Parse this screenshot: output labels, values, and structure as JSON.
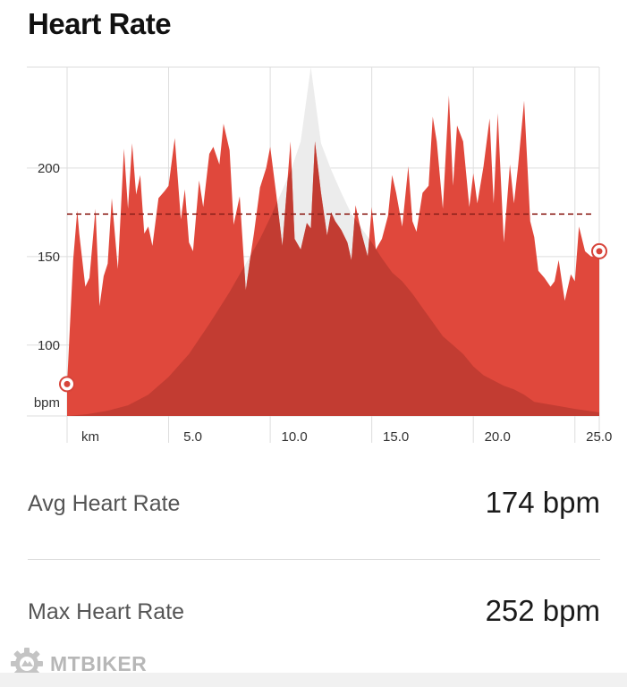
{
  "header": {
    "title": "Heart Rate"
  },
  "chart_data": {
    "type": "area",
    "y_unit": "bpm",
    "x_unit": "km",
    "xlim": [
      0,
      26.2
    ],
    "ylim": [
      60,
      257
    ],
    "y_ticks": [
      "100",
      "150",
      "200"
    ],
    "y_tick_values": [
      100,
      150,
      200
    ],
    "x_ticks": [
      "5.0",
      "10.0",
      "15.0",
      "20.0",
      "25.0"
    ],
    "x_tick_values": [
      5,
      10,
      15,
      20,
      25
    ],
    "avg_line": 174,
    "grid": true,
    "start_point": {
      "x": 0,
      "y": 78
    },
    "end_point": {
      "x": 26.2,
      "y": 153
    },
    "series": [
      {
        "x": [
          0,
          0.3,
          0.5,
          0.6,
          0.9,
          1.1,
          1.4,
          1.6,
          1.8,
          2.0,
          2.2,
          2.5,
          2.8,
          3.0,
          3.2,
          3.4,
          3.6,
          3.8,
          4.0,
          4.2,
          4.5,
          4.8,
          5.0,
          5.3,
          5.6,
          5.8,
          6.0,
          6.2,
          6.5,
          6.7,
          7.0,
          7.2,
          7.5,
          7.7,
          8.0,
          8.2,
          8.5,
          8.8,
          9.0,
          9.2,
          9.5,
          9.8,
          10.0,
          10.3,
          10.6,
          11.0,
          11.2,
          11.5,
          11.8,
          12.0,
          12.2,
          12.5,
          12.8,
          13.0,
          13.2,
          13.5,
          13.8,
          14.0,
          14.2,
          14.5,
          14.8,
          15.0,
          15.2,
          15.5,
          15.8,
          16.0,
          16.2,
          16.5,
          16.8,
          17.0,
          17.2,
          17.5,
          17.8,
          18.0,
          18.2,
          18.5,
          18.8,
          19.0,
          19.2,
          19.5,
          19.8,
          20.0,
          20.2,
          20.5,
          20.8,
          21.0,
          21.2,
          21.5,
          21.8,
          22.0,
          22.2,
          22.5,
          22.8,
          23.0,
          23.2,
          23.5,
          23.8,
          24.0,
          24.2,
          24.5,
          24.8,
          25.0,
          25.2,
          25.5,
          25.8,
          26.0,
          26.2
        ],
        "values": [
          78,
          148,
          176,
          163,
          133,
          138,
          177,
          122,
          139,
          146,
          183,
          143,
          211,
          177,
          214,
          185,
          196,
          163,
          167,
          156,
          183,
          187,
          190,
          217,
          171,
          188,
          158,
          153,
          193,
          178,
          208,
          212,
          202,
          225,
          210,
          168,
          184,
          131,
          148,
          163,
          189,
          200,
          212,
          185,
          156,
          215,
          160,
          154,
          169,
          166,
          215,
          186,
          162,
          175,
          170,
          165,
          158,
          148,
          179,
          163,
          150,
          178,
          154,
          160,
          173,
          196,
          186,
          167,
          201,
          170,
          164,
          186,
          190,
          229,
          215,
          177,
          241,
          190,
          224,
          215,
          178,
          197,
          180,
          201,
          228,
          180,
          231,
          158,
          202,
          180,
          201,
          238,
          170,
          161,
          142,
          138,
          133,
          136,
          148,
          125,
          140,
          136,
          167,
          153,
          150,
          150,
          153
        ]
      },
      {
        "x": [
          0,
          1.0,
          2.0,
          3.0,
          4.0,
          5.0,
          6.0,
          7.0,
          8.0,
          8.5,
          9.0,
          9.5,
          10.0,
          10.5,
          11.0,
          11.5,
          12.0,
          12.5,
          13.0,
          13.5,
          14.0,
          14.5,
          15.0,
          15.5,
          16.0,
          16.5,
          17.0,
          17.5,
          18.0,
          18.5,
          19.0,
          19.5,
          20.0,
          20.5,
          21.0,
          21.5,
          22.0,
          22.5,
          23.0,
          24.0,
          25.0,
          26.2
        ],
        "values": [
          60,
          61,
          63,
          66,
          72,
          82,
          95,
          112,
          130,
          140,
          150,
          160,
          172,
          185,
          198,
          215,
          257,
          214,
          199,
          186,
          174,
          166,
          158,
          149,
          141,
          136,
          129,
          121,
          113,
          105,
          100,
          95,
          88,
          83,
          80,
          77,
          75,
          72,
          68,
          66,
          64,
          62
        ]
      }
    ]
  },
  "stats": {
    "avg": {
      "label": "Avg Heart Rate",
      "value": "174 bpm"
    },
    "max": {
      "label": "Max Heart Rate",
      "value": "252 bpm"
    }
  },
  "watermark": {
    "text": "MTBIKER",
    "icon": "gear-icon"
  },
  "colors": {
    "area": "#e0483c",
    "area_shade": "#b8382f",
    "gray_area": "#ececec",
    "avg_line": "#8f231d",
    "endpoint": "#d7443a"
  }
}
